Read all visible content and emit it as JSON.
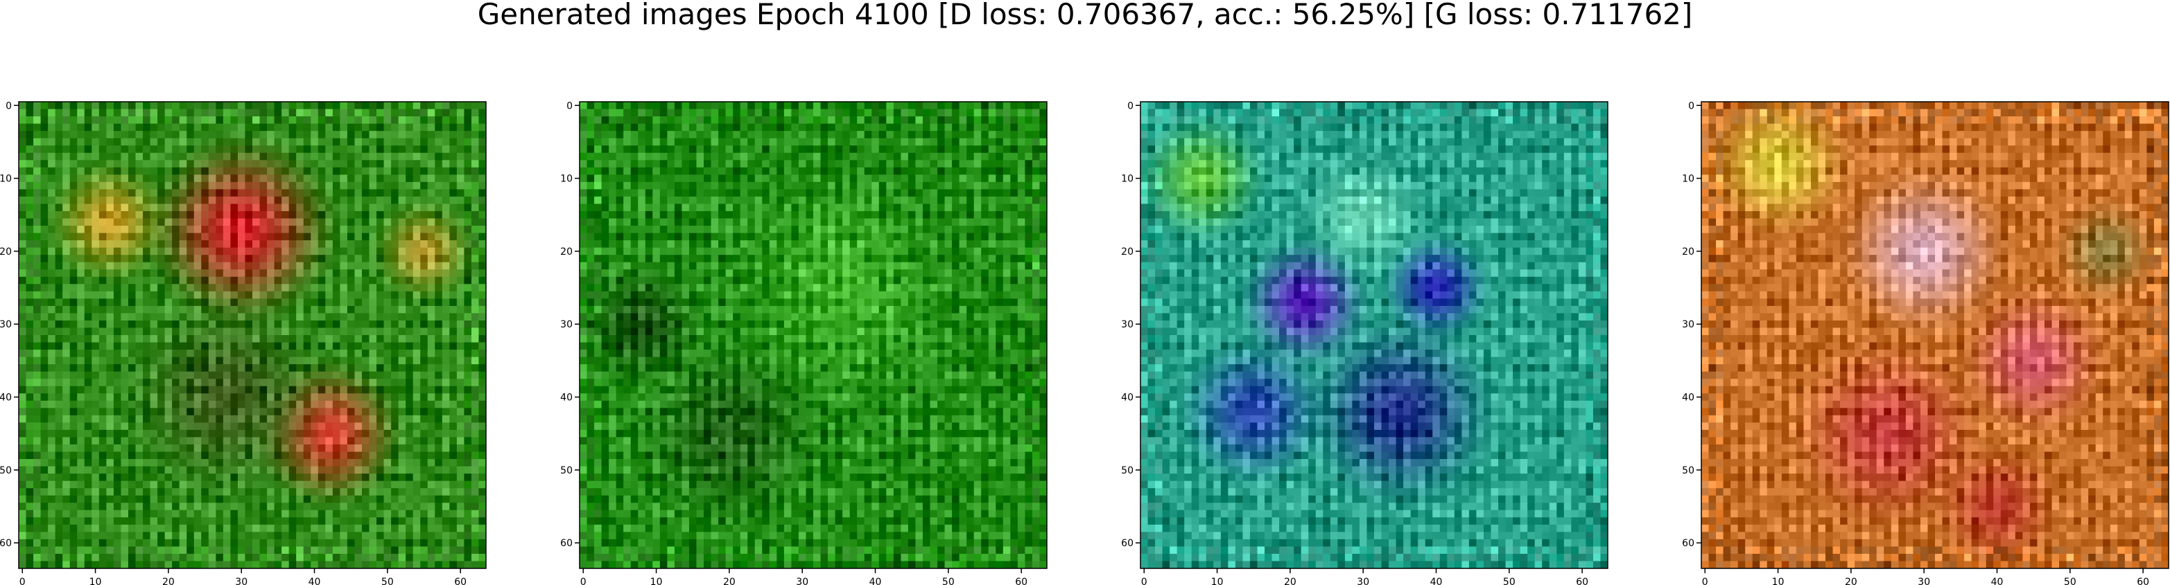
{
  "figure": {
    "title": "Generated images Epoch 4100 [D loss: 0.706367, acc.: 56.25%] [G loss: 0.711762]"
  },
  "chart_data": [
    {
      "type": "heatmap",
      "panel": "image-1",
      "description_of_content": "GAN generated 64x64 RGB image, mostly green with red/orange blob top-center and lower-right",
      "xlim": [
        -0.5,
        63.5
      ],
      "ylim": [
        63.5,
        -0.5
      ],
      "xticks": [
        0,
        10,
        20,
        30,
        40,
        50,
        60
      ],
      "yticks": [
        0,
        10,
        20,
        30,
        40,
        50,
        60
      ],
      "base_color": "#2f8a1a",
      "blobs": [
        {
          "x": 30,
          "y": 17,
          "r": 9,
          "color": "#d8242c"
        },
        {
          "x": 42,
          "y": 45,
          "r": 7,
          "color": "#d43a2a"
        },
        {
          "x": 12,
          "y": 16,
          "r": 6,
          "color": "#c9a028"
        },
        {
          "x": 28,
          "y": 40,
          "r": 10,
          "color": "#3b5a18"
        },
        {
          "x": 55,
          "y": 20,
          "r": 5,
          "color": "#b59a2e"
        }
      ]
    },
    {
      "type": "heatmap",
      "panel": "image-2",
      "description_of_content": "GAN generated 64x64 RGB image, almost uniformly green with dark stripes",
      "xlim": [
        -0.5,
        63.5
      ],
      "ylim": [
        63.5,
        -0.5
      ],
      "xticks": [
        0,
        10,
        20,
        30,
        40,
        50,
        60
      ],
      "yticks": [
        0,
        10,
        20,
        30,
        40,
        50,
        60
      ],
      "base_color": "#1f8a12",
      "blobs": [
        {
          "x": 35,
          "y": 25,
          "r": 12,
          "color": "#3fb22a"
        },
        {
          "x": 20,
          "y": 45,
          "r": 9,
          "color": "#165a0c"
        },
        {
          "x": 8,
          "y": 30,
          "r": 6,
          "color": "#124e0a"
        }
      ]
    },
    {
      "type": "heatmap",
      "panel": "image-3",
      "description_of_content": "GAN generated 64x64 RGB image, teal/cyan with blue and purple patches",
      "xlim": [
        -0.5,
        63.5
      ],
      "ylim": [
        63.5,
        -0.5
      ],
      "xticks": [
        0,
        10,
        20,
        30,
        40,
        50,
        60
      ],
      "yticks": [
        0,
        10,
        20,
        30,
        40,
        50,
        60
      ],
      "base_color": "#27a08a",
      "blobs": [
        {
          "x": 22,
          "y": 27,
          "r": 6,
          "color": "#5a20c0"
        },
        {
          "x": 40,
          "y": 25,
          "r": 5,
          "color": "#2a2ab8"
        },
        {
          "x": 35,
          "y": 42,
          "r": 9,
          "color": "#1e2e8a"
        },
        {
          "x": 15,
          "y": 42,
          "r": 7,
          "color": "#2a48b0"
        },
        {
          "x": 8,
          "y": 10,
          "r": 6,
          "color": "#5cc23a"
        },
        {
          "x": 30,
          "y": 15,
          "r": 6,
          "color": "#6ad7b6"
        }
      ]
    },
    {
      "type": "heatmap",
      "panel": "image-4",
      "description_of_content": "GAN generated 64x64 RGB image, orange/red/yellow with pink and olive patches",
      "xlim": [
        -0.5,
        63.5
      ],
      "ylim": [
        63.5,
        -0.5
      ],
      "xticks": [
        0,
        10,
        20,
        30,
        40,
        50,
        60
      ],
      "yticks": [
        0,
        10,
        20,
        30,
        40,
        50,
        60
      ],
      "base_color": "#c7702a",
      "blobs": [
        {
          "x": 10,
          "y": 8,
          "r": 7,
          "color": "#d8c83a"
        },
        {
          "x": 30,
          "y": 20,
          "r": 8,
          "color": "#e0b0c0"
        },
        {
          "x": 25,
          "y": 45,
          "r": 9,
          "color": "#c23a3a"
        },
        {
          "x": 45,
          "y": 35,
          "r": 7,
          "color": "#d45a6a"
        },
        {
          "x": 55,
          "y": 20,
          "r": 5,
          "color": "#8a7a3a"
        },
        {
          "x": 40,
          "y": 55,
          "r": 6,
          "color": "#b23020"
        }
      ]
    }
  ]
}
